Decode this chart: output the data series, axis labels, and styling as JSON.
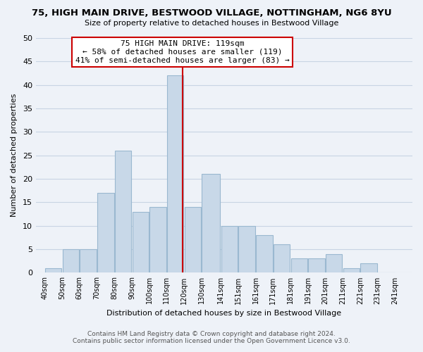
{
  "title": "75, HIGH MAIN DRIVE, BESTWOOD VILLAGE, NOTTINGHAM, NG6 8YU",
  "subtitle": "Size of property relative to detached houses in Bestwood Village",
  "xlabel": "Distribution of detached houses by size in Bestwood Village",
  "ylabel": "Number of detached properties",
  "footer_line1": "Contains HM Land Registry data © Crown copyright and database right 2024.",
  "footer_line2": "Contains public sector information licensed under the Open Government Licence v3.0.",
  "bar_left_edges": [
    40,
    50,
    60,
    70,
    80,
    90,
    100,
    110,
    120,
    130,
    141,
    151,
    161,
    171,
    181,
    191,
    201,
    211,
    221,
    231
  ],
  "bar_widths": [
    10,
    10,
    10,
    10,
    10,
    10,
    10,
    10,
    10,
    11,
    10,
    10,
    10,
    10,
    10,
    10,
    10,
    10,
    10,
    10
  ],
  "bar_heights": [
    1,
    5,
    5,
    17,
    26,
    13,
    14,
    42,
    14,
    21,
    10,
    10,
    8,
    6,
    3,
    3,
    4,
    1,
    2,
    0
  ],
  "bar_color": "#c8d8e8",
  "bar_edgecolor": "#9ab8d0",
  "vline_x": 119,
  "vline_color": "#cc0000",
  "annotation_title": "75 HIGH MAIN DRIVE: 119sqm",
  "annotation_line1": "← 58% of detached houses are smaller (119)",
  "annotation_line2": "41% of semi-detached houses are larger (83) →",
  "annotation_box_color": "#ffffff",
  "annotation_box_edgecolor": "#cc0000",
  "xlim": [
    35,
    251
  ],
  "ylim": [
    0,
    50
  ],
  "yticks": [
    0,
    5,
    10,
    15,
    20,
    25,
    30,
    35,
    40,
    45,
    50
  ],
  "xtick_labels": [
    "40sqm",
    "50sqm",
    "60sqm",
    "70sqm",
    "80sqm",
    "90sqm",
    "100sqm",
    "110sqm",
    "120sqm",
    "130sqm",
    "141sqm",
    "151sqm",
    "161sqm",
    "171sqm",
    "181sqm",
    "191sqm",
    "201sqm",
    "211sqm",
    "221sqm",
    "231sqm",
    "241sqm"
  ],
  "xtick_positions": [
    40,
    50,
    60,
    70,
    80,
    90,
    100,
    110,
    120,
    130,
    141,
    151,
    161,
    171,
    181,
    191,
    201,
    211,
    221,
    231,
    241
  ],
  "grid_color": "#c8d4e4",
  "background_color": "#eef2f8"
}
